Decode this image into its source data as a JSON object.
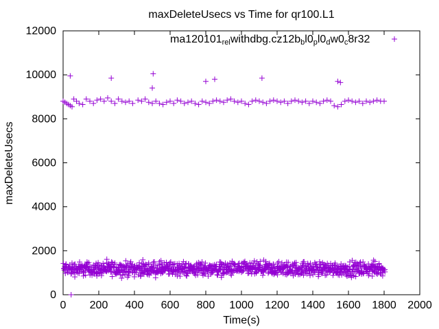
{
  "chart_data": {
    "type": "scatter",
    "title": "maxDeleteUsecs vs Time for qr100.L1",
    "xlabel": "Time(s)",
    "ylabel": "maxDeleteUsecs",
    "xlim": [
      0,
      2000
    ],
    "ylim": [
      0,
      12000
    ],
    "xticks": [
      "0",
      "200",
      "400",
      "600",
      "800",
      "1000",
      "1200",
      "1400",
      "1600",
      "1800",
      "2000"
    ],
    "yticks": [
      "0",
      "2000",
      "4000",
      "6000",
      "8000",
      "10000",
      "12000"
    ],
    "grid": false,
    "legend_position": "top-right",
    "series": [
      {
        "name": "ma120101_rel_withdbg.cz12b_bl0_pl0_dw0_c8r32",
        "legend_parts": [
          {
            "text": "ma120101",
            "sub": false
          },
          {
            "text": "rel",
            "sub": true
          },
          {
            "text": "w",
            "sub": false
          },
          {
            "text": "ithdbg.cz12b",
            "sub": false
          },
          {
            "text": "b",
            "sub": true
          },
          {
            "text": "l0",
            "sub": false
          },
          {
            "text": "p",
            "sub": true
          },
          {
            "text": "l0",
            "sub": false
          },
          {
            "text": "d",
            "sub": true
          },
          {
            "text": "w0",
            "sub": false
          },
          {
            "text": "c",
            "sub": true
          },
          {
            "text": "8r32",
            "sub": false
          }
        ],
        "color": "#9400d3",
        "marker": "plus",
        "upper_band": [
          [
            0,
            8800
          ],
          [
            10,
            8750
          ],
          [
            20,
            8700
          ],
          [
            30,
            8650
          ],
          [
            40,
            8600
          ],
          [
            50,
            8550
          ],
          [
            60,
            8900
          ],
          [
            75,
            8800
          ],
          [
            90,
            8700
          ],
          [
            110,
            8650
          ],
          [
            130,
            8900
          ],
          [
            150,
            8800
          ],
          [
            170,
            8700
          ],
          [
            190,
            8850
          ],
          [
            210,
            8900
          ],
          [
            230,
            8800
          ],
          [
            250,
            8950
          ],
          [
            270,
            8800
          ],
          [
            290,
            8700
          ],
          [
            310,
            8900
          ],
          [
            330,
            8800
          ],
          [
            350,
            8750
          ],
          [
            370,
            8800
          ],
          [
            390,
            8700
          ],
          [
            420,
            8850
          ],
          [
            440,
            8800
          ],
          [
            460,
            8900
          ],
          [
            480,
            8750
          ],
          [
            500,
            8700
          ],
          [
            520,
            8800
          ],
          [
            540,
            8700
          ],
          [
            560,
            8650
          ],
          [
            580,
            8750
          ],
          [
            600,
            8800
          ],
          [
            620,
            8700
          ],
          [
            640,
            8850
          ],
          [
            660,
            8800
          ],
          [
            680,
            8700
          ],
          [
            700,
            8750
          ],
          [
            720,
            8800
          ],
          [
            740,
            8700
          ],
          [
            760,
            8650
          ],
          [
            780,
            8800
          ],
          [
            800,
            8750
          ],
          [
            820,
            8700
          ],
          [
            840,
            8800
          ],
          [
            860,
            8850
          ],
          [
            880,
            8800
          ],
          [
            900,
            8750
          ],
          [
            920,
            8850
          ],
          [
            940,
            8900
          ],
          [
            960,
            8800
          ],
          [
            980,
            8750
          ],
          [
            1000,
            8800
          ],
          [
            1020,
            8700
          ],
          [
            1040,
            8650
          ],
          [
            1060,
            8800
          ],
          [
            1080,
            8850
          ],
          [
            1100,
            8800
          ],
          [
            1120,
            8750
          ],
          [
            1140,
            8700
          ],
          [
            1160,
            8800
          ],
          [
            1180,
            8850
          ],
          [
            1200,
            8800
          ],
          [
            1220,
            8750
          ],
          [
            1240,
            8800
          ],
          [
            1260,
            8700
          ],
          [
            1280,
            8800
          ],
          [
            1300,
            8850
          ],
          [
            1320,
            8800
          ],
          [
            1340,
            8750
          ],
          [
            1360,
            8800
          ],
          [
            1380,
            8700
          ],
          [
            1400,
            8800
          ],
          [
            1420,
            8750
          ],
          [
            1440,
            8700
          ],
          [
            1460,
            8800
          ],
          [
            1480,
            8850
          ],
          [
            1500,
            8800
          ],
          [
            1520,
            8600
          ],
          [
            1540,
            8550
          ],
          [
            1560,
            8650
          ],
          [
            1580,
            8800
          ],
          [
            1600,
            8850
          ],
          [
            1620,
            8800
          ],
          [
            1640,
            8750
          ],
          [
            1660,
            8800
          ],
          [
            1680,
            8700
          ],
          [
            1700,
            8800
          ],
          [
            1720,
            8750
          ],
          [
            1740,
            8800
          ],
          [
            1760,
            8850
          ],
          [
            1780,
            8800
          ],
          [
            1800,
            8800
          ]
        ],
        "outliers": [
          [
            40,
            9950
          ],
          [
            270,
            9850
          ],
          [
            505,
            10050
          ],
          [
            500,
            9400
          ],
          [
            800,
            9700
          ],
          [
            850,
            9800
          ],
          [
            1115,
            9850
          ],
          [
            1540,
            9700
          ],
          [
            1555,
            9650
          ],
          [
            45,
            0
          ]
        ],
        "lower_band": {
          "x_start": 0,
          "x_end": 1800,
          "step": 5,
          "center": 1200,
          "spread_low": 700,
          "spread_high": 1650
        }
      }
    ]
  }
}
